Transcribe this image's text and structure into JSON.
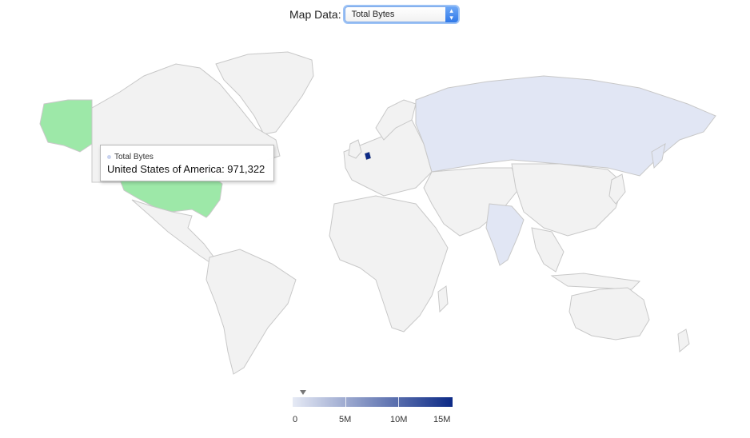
{
  "controls": {
    "map_data_label": "Map Data:",
    "selected_option": "Total Bytes"
  },
  "tooltip": {
    "series": "Total Bytes",
    "text": "United States of America: 971,322"
  },
  "legend": {
    "ticks": [
      "0",
      "5M",
      "10M",
      "15M"
    ]
  },
  "colors": {
    "default_land": "#f2f2f2",
    "hover_highlight": "#9de8a8",
    "low": "#e1e6f4",
    "high": "#0c2a86"
  },
  "map_data": {
    "metric": "Total Bytes",
    "hovered_country": "United States of America",
    "values": [
      {
        "country": "United States of America",
        "value": 971322
      },
      {
        "country": "Russia",
        "value_shading": "low"
      },
      {
        "country": "India",
        "value_shading": "low"
      },
      {
        "country": "Netherlands",
        "value_shading": "high"
      }
    ]
  }
}
